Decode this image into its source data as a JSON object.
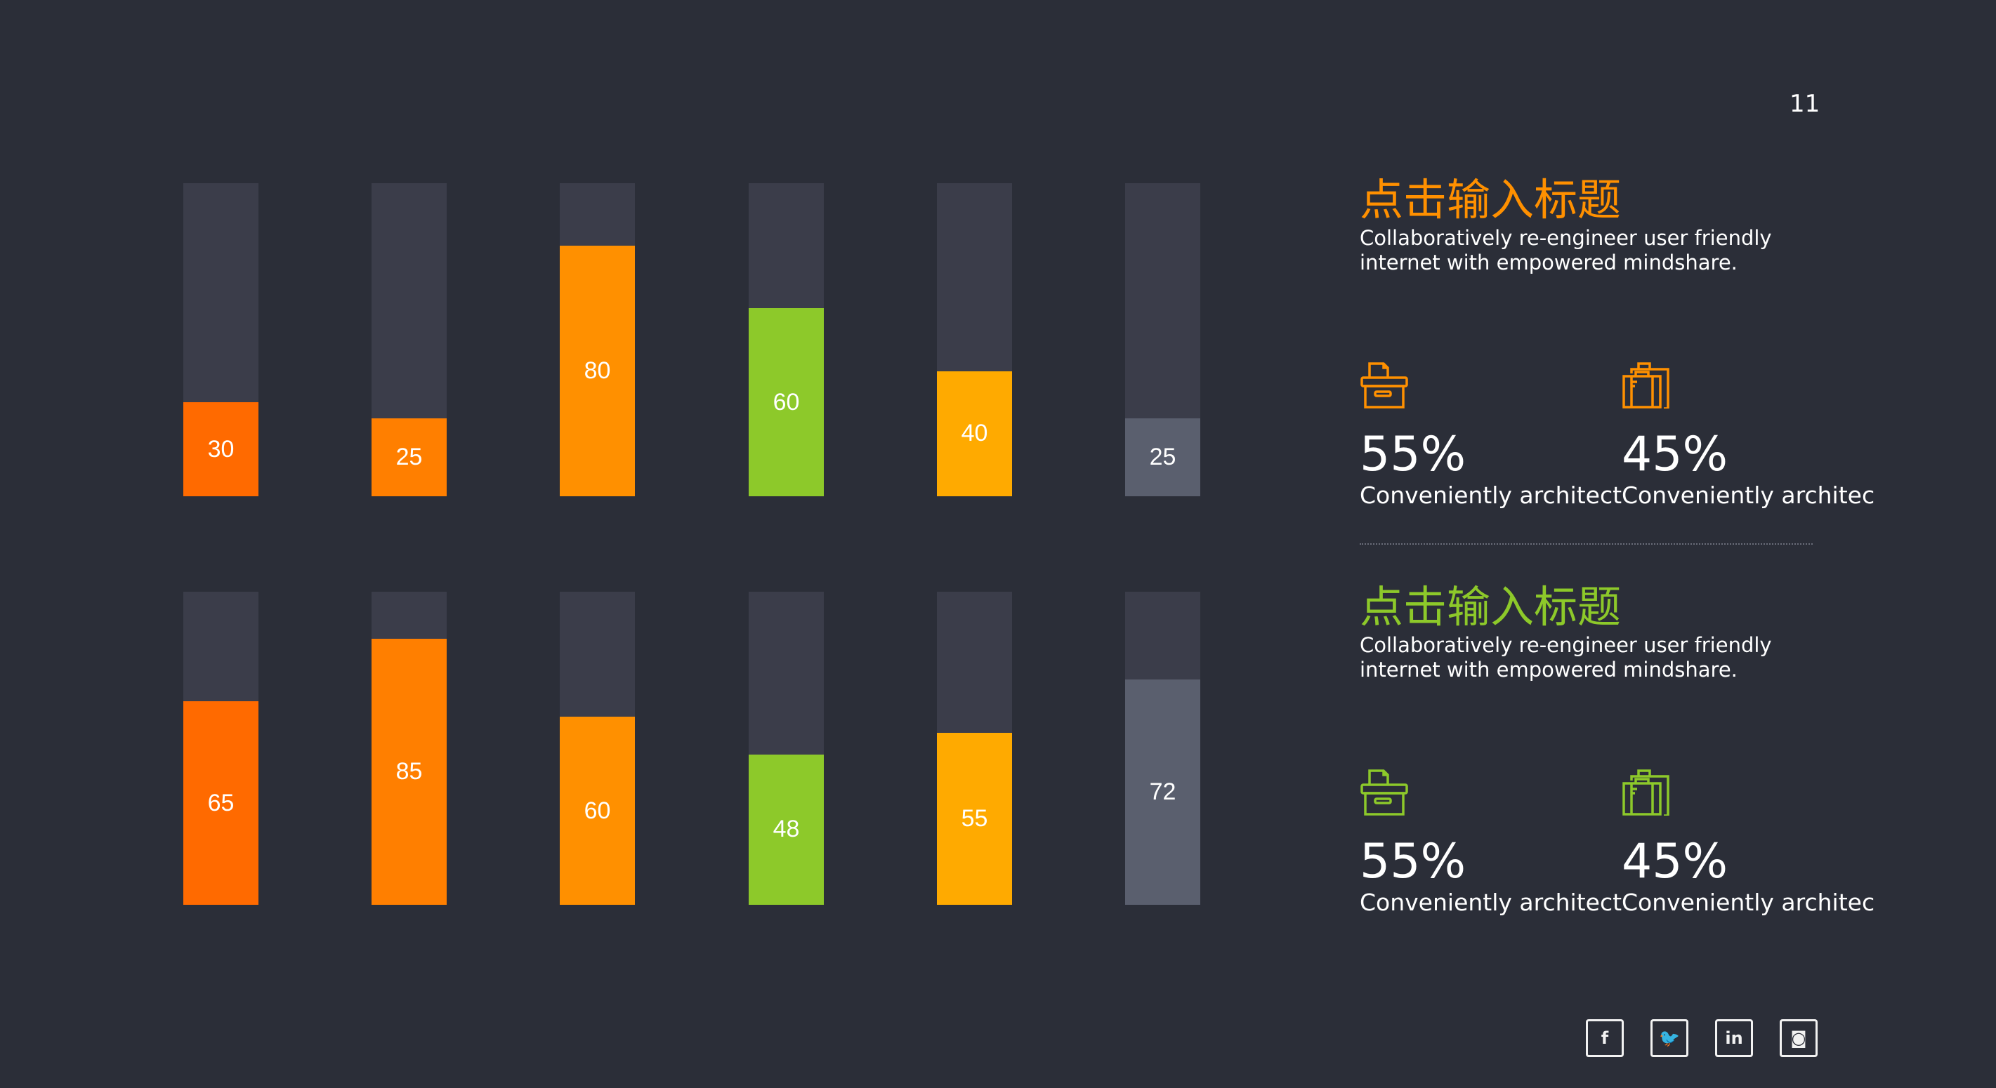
{
  "page_number": "11",
  "colors": {
    "background": "#2b2e38",
    "track": "#3b3d4a",
    "orange": "#ff9000",
    "green": "#8dc92a"
  },
  "chart_data": [
    {
      "type": "bar",
      "orientation": "vertical-progress",
      "ylim": [
        0,
        100
      ],
      "values": [
        30,
        25,
        80,
        60,
        40,
        25
      ],
      "colors": [
        "#ff6a00",
        "#ff7f00",
        "#ff9000",
        "#8dc92a",
        "#ffaa00",
        "#5a5f6e"
      ]
    },
    {
      "type": "bar",
      "orientation": "vertical-progress",
      "ylim": [
        0,
        100
      ],
      "values": [
        65,
        85,
        60,
        48,
        55,
        72
      ],
      "colors": [
        "#ff6a00",
        "#ff7f00",
        "#ff9000",
        "#8dc92a",
        "#ffaa00",
        "#5a5f6e"
      ]
    }
  ],
  "blocks": [
    {
      "title": "点击输入标题",
      "title_color": "#ff9000",
      "desc_line1": "Collaboratively re-engineer user friendly",
      "desc_line2": "internet with empowered mindshare.",
      "stats": [
        {
          "icon": "archive-box-icon",
          "value": "55%",
          "label": "Conveniently architect"
        },
        {
          "icon": "suitcase-icon",
          "value": "45%",
          "label": "Conveniently architec"
        }
      ]
    },
    {
      "title": "点击输入标题",
      "title_color": "#8dc92a",
      "desc_line1": "Collaboratively re-engineer user friendly",
      "desc_line2": "internet with empowered mindshare.",
      "stats": [
        {
          "icon": "archive-box-icon",
          "value": "55%",
          "label": "Conveniently architect"
        },
        {
          "icon": "suitcase-icon",
          "value": "45%",
          "label": "Conveniently architec"
        }
      ]
    }
  ],
  "social": [
    {
      "name": "facebook",
      "glyph": "f"
    },
    {
      "name": "twitter",
      "glyph": "🐦"
    },
    {
      "name": "linkedin",
      "glyph": "in"
    },
    {
      "name": "instagram",
      "glyph": "◙"
    }
  ]
}
